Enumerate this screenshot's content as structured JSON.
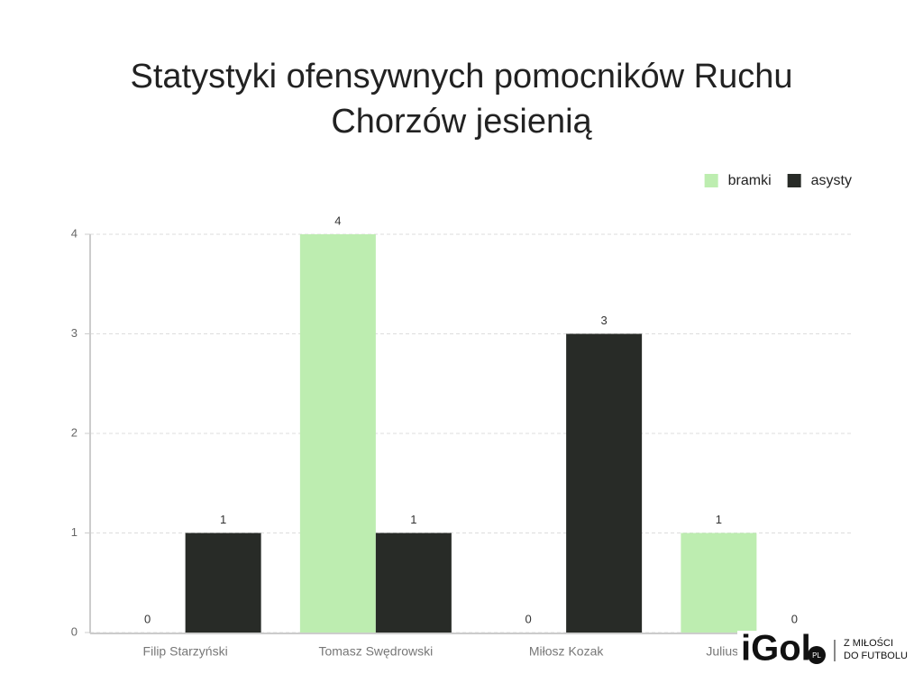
{
  "chart_data": {
    "type": "bar",
    "title": "Statystyki ofensywnych pomocników Ruchu Chorzów jesienią",
    "categories": [
      "Filip Starzyński",
      "Tomasz Swędrowski",
      "Miłosz Kozak",
      "Juliusz Letniowski"
    ],
    "series": [
      {
        "name": "bramki",
        "color": "#bdedb0",
        "values": [
          0,
          4,
          0,
          1
        ]
      },
      {
        "name": "asysty",
        "color": "#282b27",
        "values": [
          1,
          1,
          3,
          0
        ]
      }
    ],
    "ylim": [
      0,
      4
    ],
    "yticks": [
      0,
      1,
      2,
      3,
      4
    ],
    "grid": true,
    "legend": "top-right"
  },
  "logo": {
    "brand": "iGol",
    "suffix": "PL",
    "tagline_1": "Z MIŁOŚCI",
    "tagline_2": "DO FUTBOLU"
  }
}
